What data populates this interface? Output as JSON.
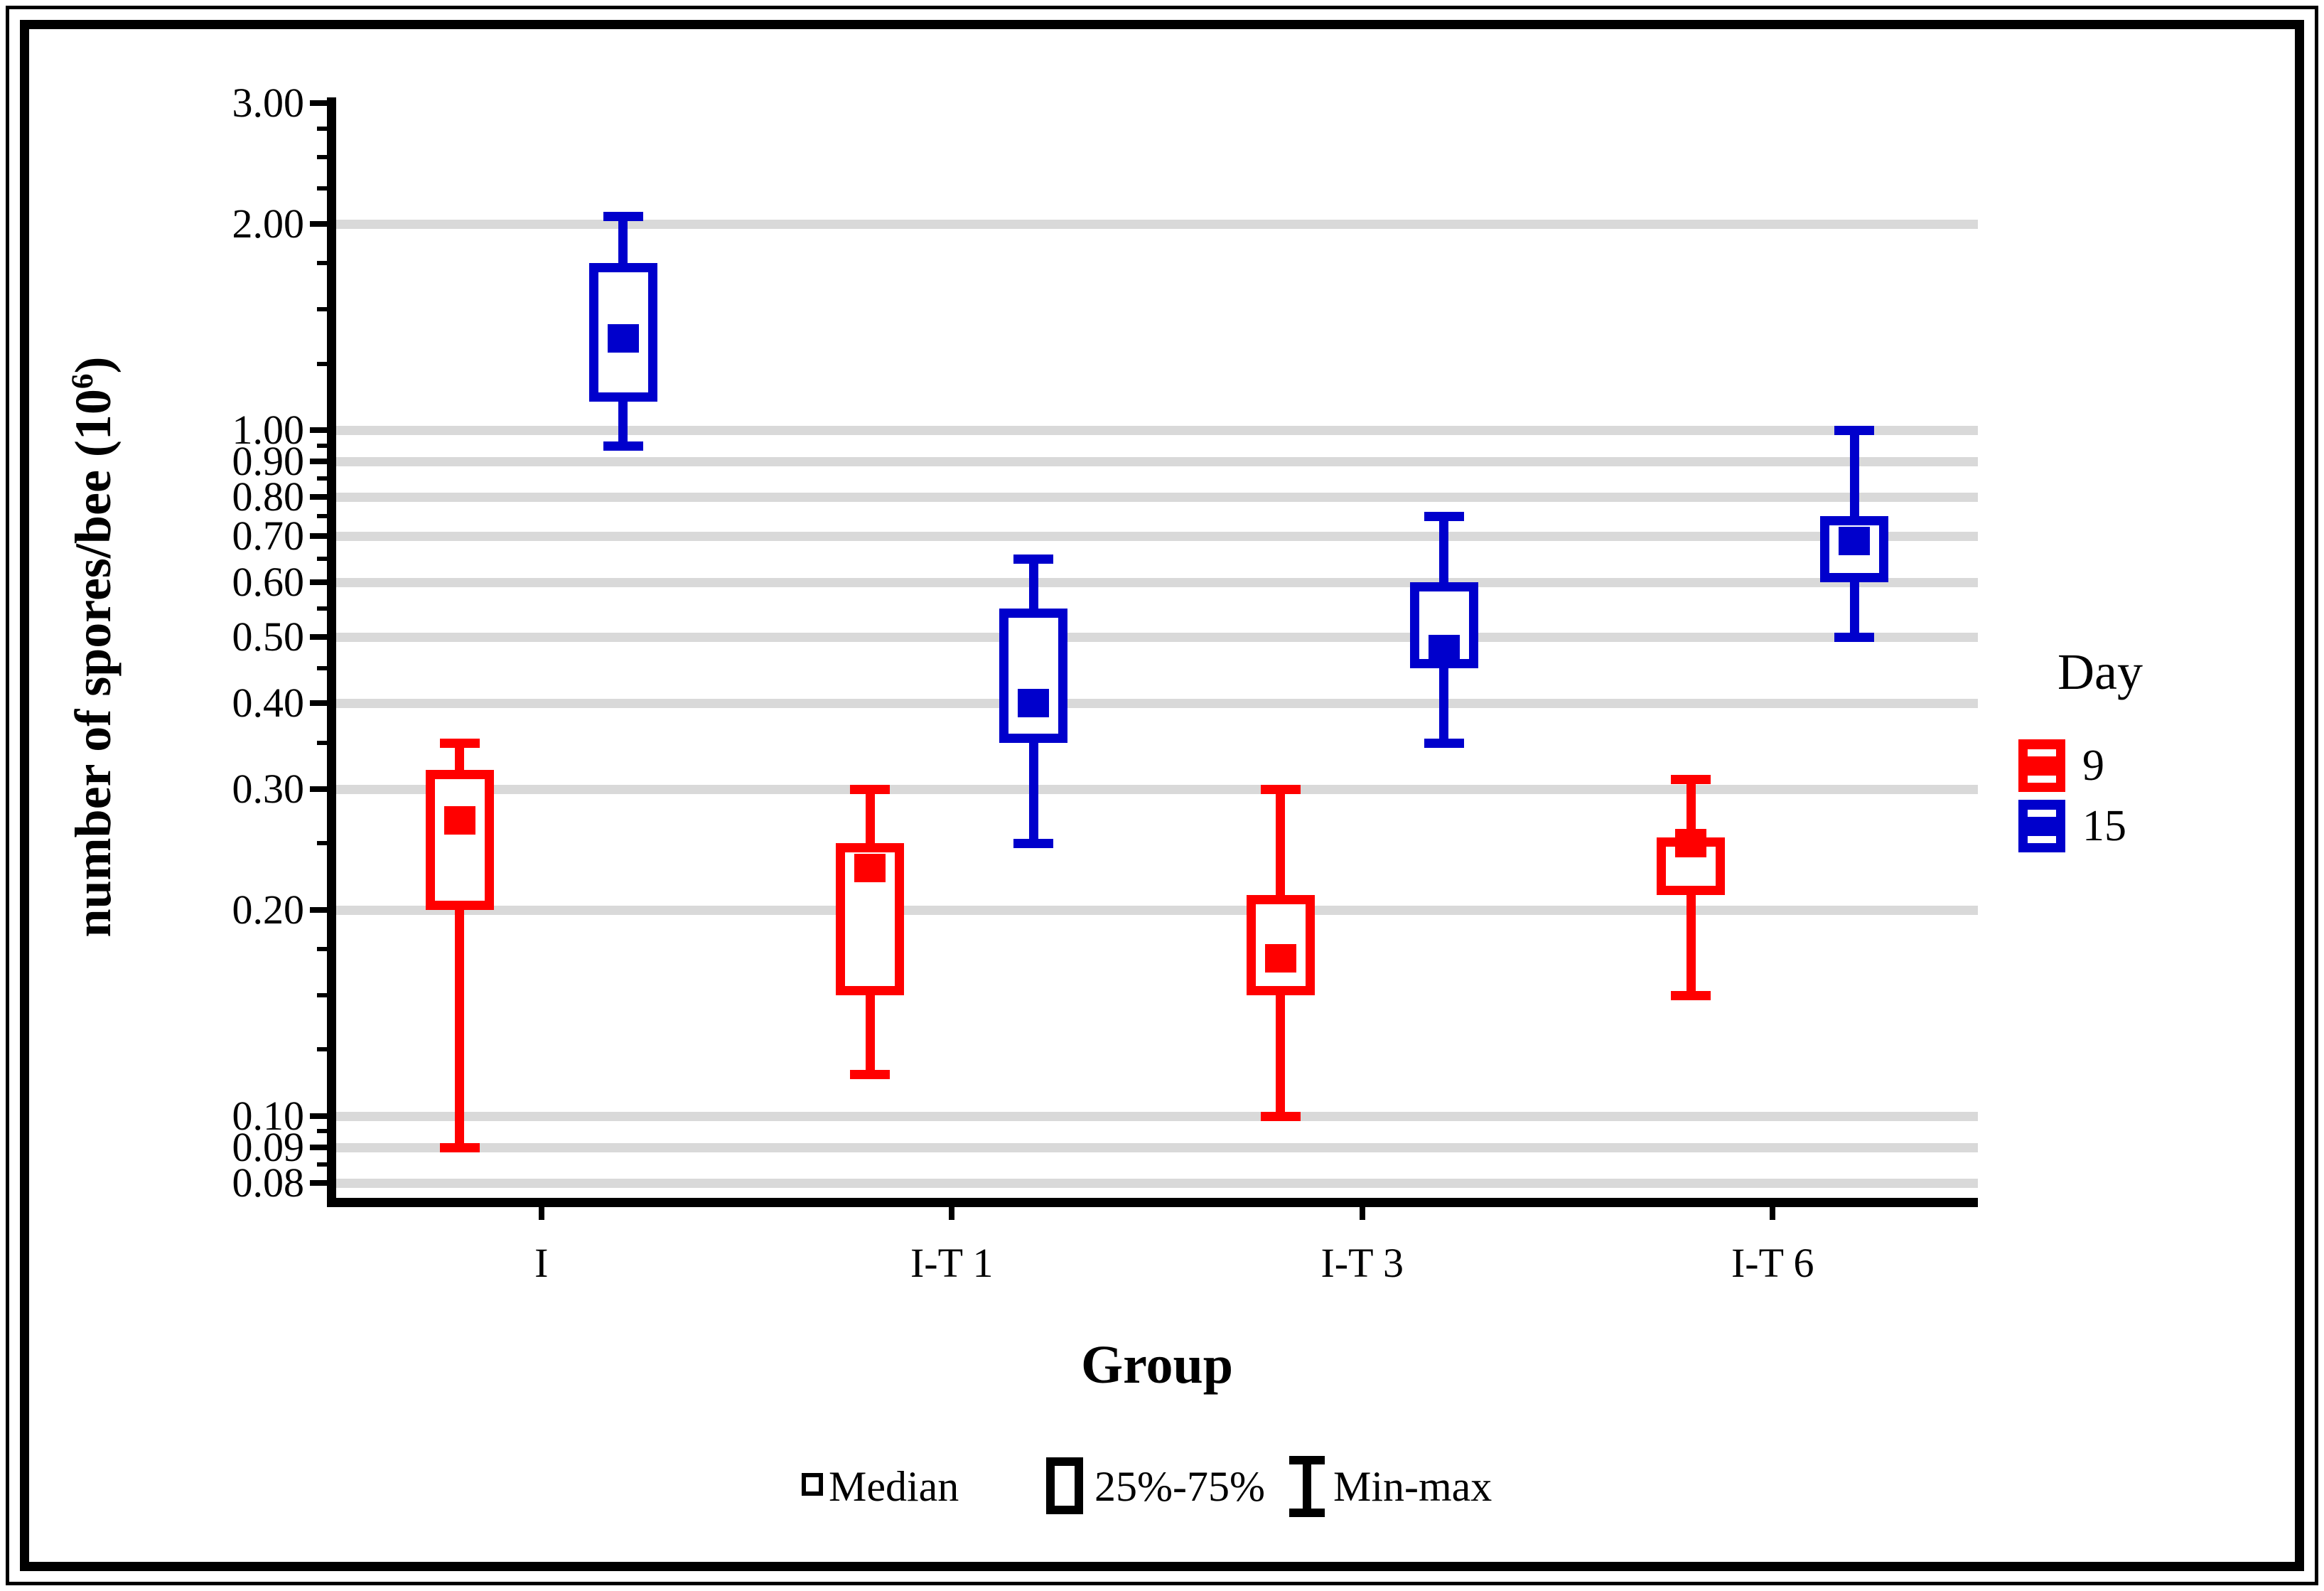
{
  "y_axis": {
    "title_main": "number of spores/bee (10",
    "title_sup": "6",
    "title_close": ")",
    "major_ticks": [
      {
        "v": 3.0,
        "label": "3.00"
      },
      {
        "v": 2.0,
        "label": "2.00"
      },
      {
        "v": 1.0,
        "label": "1.00"
      },
      {
        "v": 0.9,
        "label": "0.90"
      },
      {
        "v": 0.8,
        "label": "0.80"
      },
      {
        "v": 0.7,
        "label": "0.70"
      },
      {
        "v": 0.6,
        "label": "0.60"
      },
      {
        "v": 0.5,
        "label": "0.50"
      },
      {
        "v": 0.4,
        "label": "0.40"
      },
      {
        "v": 0.3,
        "label": "0.30"
      },
      {
        "v": 0.2,
        "label": "0.20"
      },
      {
        "v": 0.1,
        "label": "0.10"
      },
      {
        "v": 0.09,
        "label": "0.09"
      },
      {
        "v": 0.08,
        "label": "0.08"
      }
    ],
    "minor_ticks": [
      2.75,
      2.5,
      2.25,
      1.75,
      1.5,
      1.25,
      0.95,
      0.85,
      0.75,
      0.65,
      0.55,
      0.45,
      0.35,
      0.25,
      0.175,
      0.15,
      0.125,
      0.095,
      0.085
    ]
  },
  "x_axis": {
    "title": "Group",
    "categories": [
      "I",
      "I-T 1",
      "I-T 3",
      "I-T 6"
    ]
  },
  "legend": {
    "title": "Day",
    "items": [
      {
        "label": "9",
        "color": "#ff0000"
      },
      {
        "label": "15",
        "color": "#0000cc"
      }
    ]
  },
  "marker_legend": {
    "median_label": "Median",
    "box_label": "25%-75%",
    "whisker_label": "Min-max"
  },
  "colors": {
    "day9": "#ff0000",
    "day15": "#0000cc",
    "gridline": "#d9d9d9",
    "axis": "#000000"
  },
  "chart_data": {
    "type": "boxplot",
    "xlabel": "Group",
    "ylabel": "number of spores/bee (10^6)",
    "y_scale": "log",
    "ylim": [
      0.076,
      3.055
    ],
    "grid": "horizontal-major",
    "legend_position": "right",
    "categories": [
      "I",
      "I-T 1",
      "I-T 3",
      "I-T 6"
    ],
    "gridline_values": [
      2.0,
      1.0,
      0.9,
      0.8,
      0.7,
      0.6,
      0.5,
      0.4,
      0.3,
      0.2,
      0.1,
      0.09,
      0.08
    ],
    "series": [
      {
        "name": "9",
        "color": "#ff0000",
        "boxes": [
          {
            "category": "I",
            "min": 0.09,
            "q1": 0.2,
            "median": 0.27,
            "q3": 0.32,
            "max": 0.35
          },
          {
            "category": "I-T 1",
            "min": 0.115,
            "q1": 0.15,
            "median": 0.23,
            "q3": 0.25,
            "max": 0.3
          },
          {
            "category": "I-T 3",
            "min": 0.1,
            "q1": 0.15,
            "median": 0.17,
            "q3": 0.21,
            "max": 0.3
          },
          {
            "category": "I-T 6",
            "min": 0.15,
            "q1": 0.21,
            "median": 0.25,
            "q3": 0.255,
            "max": 0.31
          }
        ]
      },
      {
        "name": "15",
        "color": "#0000cc",
        "boxes": [
          {
            "category": "I",
            "min": 0.95,
            "q1": 1.1,
            "median": 1.36,
            "q3": 1.75,
            "max": 2.05
          },
          {
            "category": "I-T 1",
            "min": 0.25,
            "q1": 0.35,
            "median": 0.4,
            "q3": 0.55,
            "max": 0.65
          },
          {
            "category": "I-T 3",
            "min": 0.35,
            "q1": 0.45,
            "median": 0.48,
            "q3": 0.6,
            "max": 0.75
          },
          {
            "category": "I-T 6",
            "min": 0.5,
            "q1": 0.6,
            "median": 0.69,
            "q3": 0.75,
            "max": 1.0
          }
        ]
      }
    ]
  }
}
